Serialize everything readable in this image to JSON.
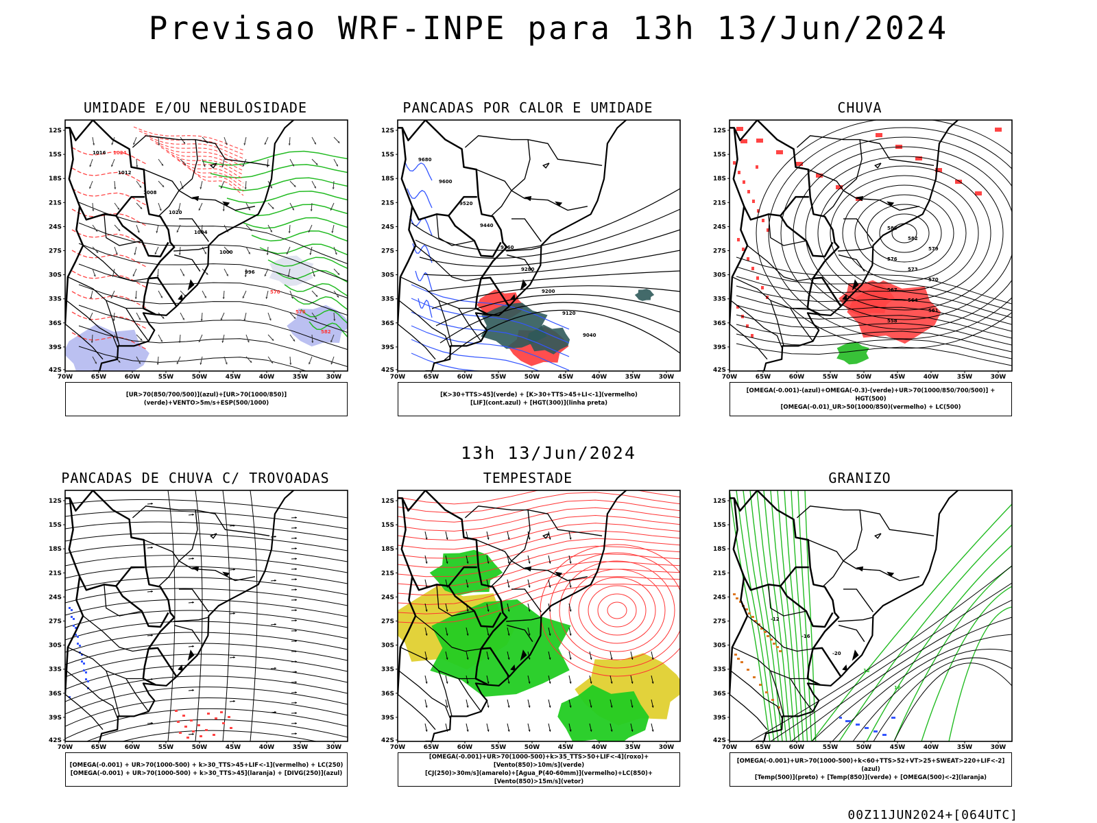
{
  "header": {
    "title": "Previsao WRF-INPE  para 13h 13/Jun/2024"
  },
  "middle": {
    "title": "13h 13/Jun/2024"
  },
  "footer": {
    "run_info": "00Z11JUN2024+[064UTC]"
  },
  "axes": {
    "lat_labels": [
      "12S",
      "15S",
      "18S",
      "21S",
      "24S",
      "27S",
      "30S",
      "33S",
      "36S",
      "39S",
      "42S"
    ],
    "lon_labels": [
      "70W",
      "65W",
      "60W",
      "55W",
      "50W",
      "45W",
      "40W",
      "35W",
      "30W"
    ]
  },
  "panels": [
    {
      "title": "UMIDADE E/OU NEBULOSIDADE",
      "legend_lines": [
        "[UR>70(850/700/500)](azul)+[UR>70(1000/850)](verde)+VENTO>5m/s+ESP(500/1000)"
      ],
      "contour_labels": [
        "1016",
        "1012",
        "1008",
        "1020",
        "1004",
        "1000",
        "996",
        "570",
        "576",
        "582",
        "1024"
      ]
    },
    {
      "title": "PANCADAS POR CALOR E UMIDADE",
      "legend_lines": [
        "[K>30+TTS>45](verde) + [K>30+TTS>45+LI<-1](vermelho)",
        "[LIF](cont.azul) + [HGT(300)](linha preta)"
      ],
      "contour_labels": [
        "9680",
        "9600",
        "9520",
        "9440",
        "9360",
        "9280",
        "9200",
        "9120",
        "9040"
      ]
    },
    {
      "title": "CHUVA",
      "legend_lines": [
        "[OMEGA(-0.001)-(azul)+OMEGA(-0.3)-(verde)+UR>70(1000/850/700/500)] + HGT(500)",
        "[OMEGA(-0.01)_UR>50(1000/850)(vermelho) + LC(500)"
      ],
      "contour_labels": [
        "585",
        "582",
        "579",
        "576",
        "573",
        "570",
        "567",
        "564",
        "561",
        "558"
      ]
    },
    {
      "title": "PANCADAS DE CHUVA C/ TROVOADAS",
      "legend_lines": [
        "[OMEGA(-0.001) + UR>70(1000-500) + k>30_TTS>45+LIF<-1](vermelho) + LC(250)",
        "[OMEGA(-0.001) + UR>70(1000-500) + k>30_TTS>45](laranja) + [DIVG(250)](azul)"
      ],
      "contour_labels": []
    },
    {
      "title": "TEMPESTADE",
      "legend_lines": [
        "[OMEGA(-0.001)+UR>70(1000-500)+k>35_TTS>50+LIF<-4](roxo)+[Vento(850)>10m/s](verde)",
        "[CJ(250)>30m/s](amarelo)+[Agua_P(40-60mm)](vermelho)+LC(850)+[Vento(850)>15m/s](vetor)"
      ],
      "contour_labels": []
    },
    {
      "title": "GRANIZO",
      "legend_lines": [
        "[OMEGA(-0.001)+UR>70(1000-500)+k<60+TTS>52+VT>25+SWEAT>220+LIF<-2](azul)",
        "[Temp(500)](preto) + [Temp(850)](verde) + [OMEGA(500)<-2](laranja)"
      ],
      "contour_labels": [
        "-12",
        "-16",
        "-20",
        "12",
        "16"
      ]
    }
  ],
  "colors": {
    "green": "#22bb22",
    "red": "#ff4444",
    "blue": "#3355ff",
    "lavender": "#aab0ee",
    "teal": "#2f5a5a",
    "yellow": "#e0d030",
    "orange": "#dd7722",
    "leaf": "#22cc22"
  }
}
